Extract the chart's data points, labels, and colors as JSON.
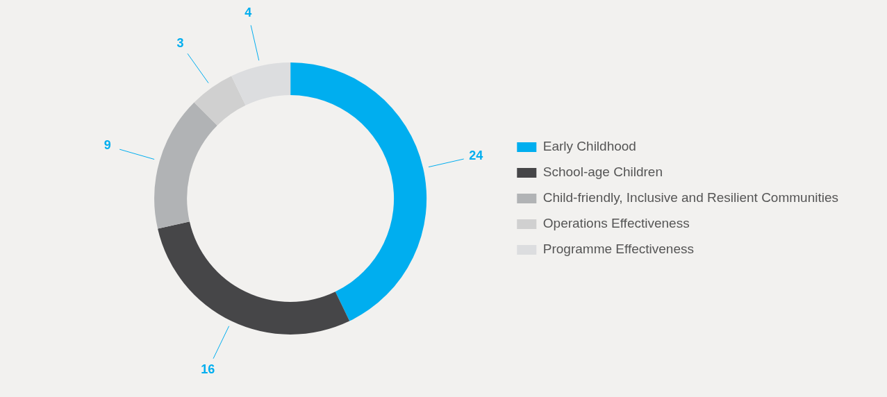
{
  "chart_data": {
    "type": "donut",
    "categories": [
      "Early Childhood",
      "School-age Children",
      "Child-friendly, Inclusive and Resilient Communities",
      "Operations Effectiveness",
      "Programme Effectiveness"
    ],
    "values": [
      24,
      16,
      9,
      3,
      4
    ],
    "colors": [
      "#00aeef",
      "#464648",
      "#b1b3b5",
      "#d0d0d0",
      "#dcdddf"
    ],
    "data_labels": true,
    "legend": "right"
  }
}
